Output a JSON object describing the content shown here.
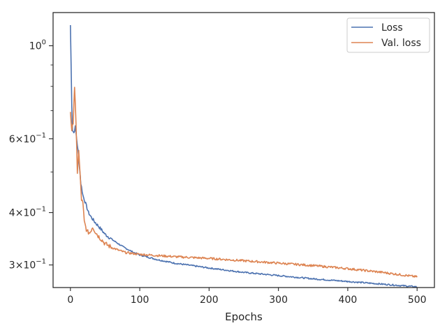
{
  "chart_data": {
    "type": "line",
    "xlabel": "Epochs",
    "ylabel": "",
    "title": "",
    "xlim": [
      -25,
      525
    ],
    "ylim": [
      0.265,
      1.2
    ],
    "y_scale": "log",
    "x_ticks": [
      {
        "value": 0,
        "label": "0"
      },
      {
        "value": 100,
        "label": "100"
      },
      {
        "value": 200,
        "label": "200"
      },
      {
        "value": 300,
        "label": "300"
      },
      {
        "value": 400,
        "label": "400"
      },
      {
        "value": 500,
        "label": "500"
      }
    ],
    "y_major_ticks": [
      {
        "value": 1.0,
        "base": "10",
        "exp": "0",
        "mult": ""
      },
      {
        "value": 0.6,
        "base": "10",
        "exp": "−1",
        "mult": "6"
      },
      {
        "value": 0.4,
        "base": "10",
        "exp": "−1",
        "mult": "4"
      },
      {
        "value": 0.3,
        "base": "10",
        "exp": "−1",
        "mult": "3"
      }
    ],
    "y_minor_ticks": [
      0.9,
      0.8,
      0.7,
      0.5
    ],
    "grid": false,
    "legend_position": "top-right",
    "series": [
      {
        "name": "Loss",
        "color": "#4c72b0",
        "noise": 0.004,
        "points": [
          [
            0,
            1.12
          ],
          [
            1,
            0.9
          ],
          [
            2,
            0.72
          ],
          [
            3,
            0.63
          ],
          [
            5,
            0.62
          ],
          [
            7,
            0.64
          ],
          [
            9,
            0.6
          ],
          [
            12,
            0.54
          ],
          [
            15,
            0.47
          ],
          [
            18,
            0.44
          ],
          [
            22,
            0.42
          ],
          [
            26,
            0.4
          ],
          [
            30,
            0.39
          ],
          [
            35,
            0.38
          ],
          [
            40,
            0.372
          ],
          [
            50,
            0.355
          ],
          [
            60,
            0.345
          ],
          [
            75,
            0.332
          ],
          [
            90,
            0.322
          ],
          [
            100,
            0.317
          ],
          [
            125,
            0.309
          ],
          [
            150,
            0.303
          ],
          [
            200,
            0.295
          ],
          [
            250,
            0.288
          ],
          [
            300,
            0.283
          ],
          [
            350,
            0.278
          ],
          [
            400,
            0.274
          ],
          [
            450,
            0.27
          ],
          [
            500,
            0.266
          ]
        ]
      },
      {
        "name": "Val. loss",
        "color": "#dd8452",
        "noise": 0.006,
        "points": [
          [
            0,
            0.7
          ],
          [
            2,
            0.62
          ],
          [
            4,
            0.66
          ],
          [
            6,
            0.8
          ],
          [
            8,
            0.65
          ],
          [
            10,
            0.5
          ],
          [
            12,
            0.56
          ],
          [
            14,
            0.49
          ],
          [
            16,
            0.43
          ],
          [
            18,
            0.42
          ],
          [
            20,
            0.38
          ],
          [
            24,
            0.36
          ],
          [
            28,
            0.358
          ],
          [
            32,
            0.37
          ],
          [
            36,
            0.36
          ],
          [
            40,
            0.352
          ],
          [
            45,
            0.345
          ],
          [
            50,
            0.337
          ],
          [
            60,
            0.33
          ],
          [
            70,
            0.325
          ],
          [
            80,
            0.321
          ],
          [
            100,
            0.318
          ],
          [
            125,
            0.316
          ],
          [
            150,
            0.314
          ],
          [
            200,
            0.311
          ],
          [
            250,
            0.307
          ],
          [
            300,
            0.303
          ],
          [
            350,
            0.299
          ],
          [
            400,
            0.294
          ],
          [
            450,
            0.288
          ],
          [
            500,
            0.281
          ]
        ]
      }
    ]
  }
}
